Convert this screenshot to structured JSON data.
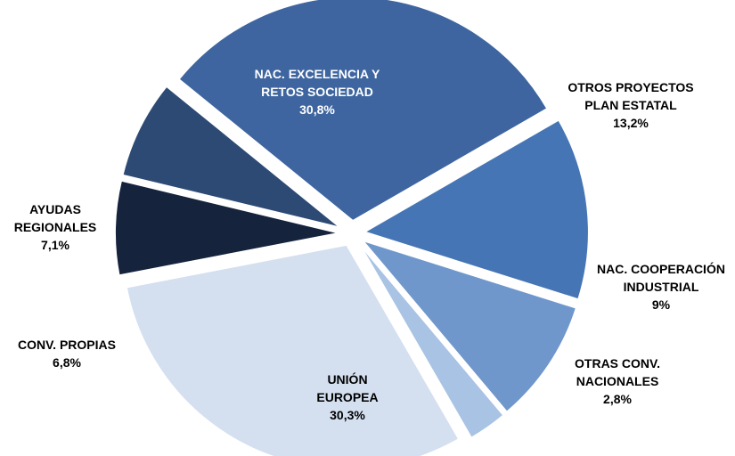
{
  "chart_data": {
    "type": "pie",
    "title": "",
    "slices": [
      {
        "label_lines": [
          "OTROS PROYECTOS",
          "PLAN ESTATAL"
        ],
        "value_label": "13,2%",
        "value": 13.2,
        "color": "#4575b4"
      },
      {
        "label_lines": [
          "NAC. COOPERACIÓN",
          "INDUSTRIAL"
        ],
        "value_label": "9%",
        "value": 9,
        "color": "#6f97cc"
      },
      {
        "label_lines": [
          "OTRAS CONV.",
          "NACIONALES"
        ],
        "value_label": "2,8%",
        "value": 2.8,
        "color": "#a9c3e4"
      },
      {
        "label_lines": [
          "UNIÓN",
          "EUROPEA"
        ],
        "value_label": "30,3%",
        "value": 30.3,
        "color": "#d4e0f0"
      },
      {
        "label_lines": [
          "CONV. PROPIAS"
        ],
        "value_label": "6,8%",
        "value": 6.8,
        "color": "#15233d"
      },
      {
        "label_lines": [
          "AYUDAS",
          "REGIONALES"
        ],
        "value_label": "7,1%",
        "value": 7.1,
        "color": "#2d4a75"
      },
      {
        "label_lines": [
          "NAC. EXCELENCIA Y",
          "RETOS SOCIEDAD"
        ],
        "value_label": "30,8%",
        "value": 30.8,
        "color": "#3e65a0"
      }
    ],
    "legend": "none"
  }
}
